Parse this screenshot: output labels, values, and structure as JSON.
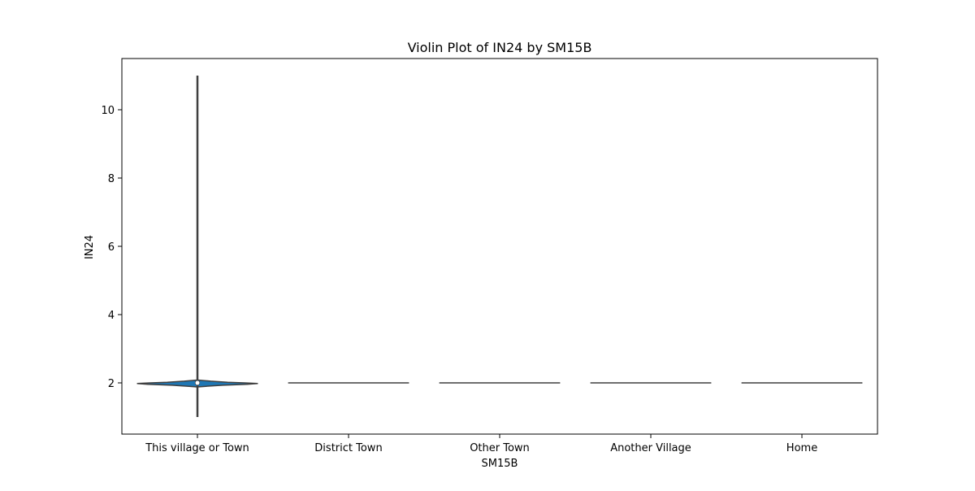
{
  "chart_data": {
    "type": "violin",
    "title": "Violin Plot of IN24 by SM15B",
    "xlabel": "SM15B",
    "ylabel": "IN24",
    "categories": [
      "This village or Town",
      "District Town",
      "Other Town",
      "Another Village",
      "Home"
    ],
    "ylim": [
      0.5,
      11.5
    ],
    "yticks": [
      2,
      4,
      6,
      8,
      10
    ],
    "grid": false,
    "legend": "none",
    "violins": [
      {
        "category": "This village or Town",
        "min": 1,
        "max": 11,
        "q1": 2,
        "median": 2,
        "q3": 2,
        "density": [
          [
            1.88,
            0.0
          ],
          [
            1.9,
            0.14
          ],
          [
            1.93,
            0.42
          ],
          [
            1.96,
            0.82
          ],
          [
            1.98,
            1.0
          ],
          [
            2.0,
            0.78
          ],
          [
            2.02,
            0.5
          ],
          [
            2.05,
            0.22
          ],
          [
            2.08,
            0.02
          ]
        ]
      },
      {
        "category": "District Town",
        "min": 2,
        "max": 2,
        "q1": 2,
        "median": 2,
        "q3": 2,
        "density": []
      },
      {
        "category": "Other Town",
        "min": 2,
        "max": 2,
        "q1": 2,
        "median": 2,
        "q3": 2,
        "density": []
      },
      {
        "category": "Another Village",
        "min": 2,
        "max": 2,
        "q1": 2,
        "median": 2,
        "q3": 2,
        "density": []
      },
      {
        "category": "Home",
        "min": 2,
        "max": 2,
        "q1": 2,
        "median": 2,
        "q3": 2,
        "density": []
      }
    ],
    "colors": {
      "fill": "#1f77b4",
      "edge": "#3f3f3f",
      "axis": "#000000"
    }
  }
}
